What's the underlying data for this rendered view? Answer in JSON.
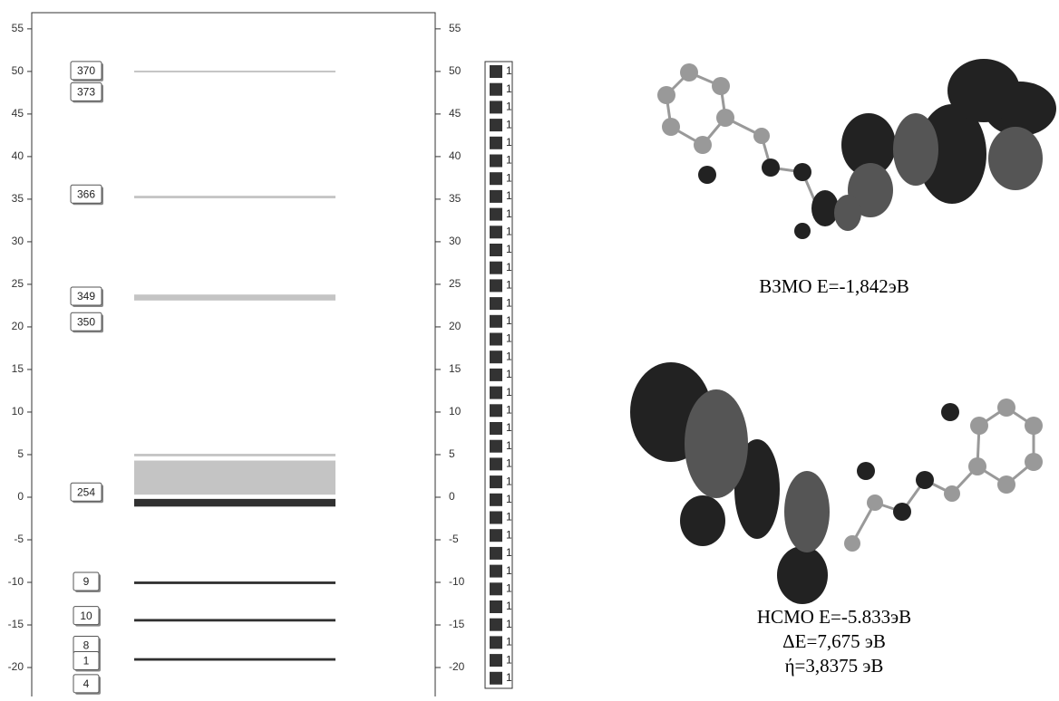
{
  "chart_data": {
    "type": "energy-levels",
    "ylim": [
      -23.4,
      56.9
    ],
    "yticks": [
      55,
      50,
      45,
      40,
      35,
      30,
      25,
      20,
      15,
      10,
      5,
      0,
      -5,
      -10,
      -15,
      -20
    ],
    "levels": [
      {
        "ymin": 49.9,
        "ymax": 50.1,
        "color": "#c4c4c4"
      },
      {
        "ymin": 35.1,
        "ymax": 35.4,
        "color": "#c4c4c4"
      },
      {
        "ymin": 23.1,
        "ymax": 23.8,
        "color": "#c4c4c4"
      },
      {
        "ymin": 4.8,
        "ymax": 5.1,
        "color": "#c4c4c4"
      },
      {
        "ymin": 0.3,
        "ymax": 4.3,
        "color": "#c4c4c4"
      },
      {
        "ymin": -1.1,
        "ymax": -0.2,
        "color": "#303030"
      },
      {
        "ymin": -10.2,
        "ymax": -9.9,
        "color": "#303030"
      },
      {
        "ymin": -14.6,
        "ymax": -14.3,
        "color": "#303030"
      },
      {
        "ymin": -19.2,
        "ymax": -18.9,
        "color": "#303030"
      }
    ],
    "level_labels": [
      {
        "label": "370",
        "value": 50
      },
      {
        "label": "373",
        "value": 47.5
      },
      {
        "label": "366",
        "value": 35.5
      },
      {
        "label": "349",
        "value": 23.5
      },
      {
        "label": "350",
        "value": 20.5
      },
      {
        "label": "254",
        "value": 0.5
      },
      {
        "label": "9",
        "value": -10
      },
      {
        "label": "10",
        "value": -14
      },
      {
        "label": "8",
        "value": -17.5
      },
      {
        "label": "1",
        "value": -19.3
      },
      {
        "label": "4",
        "value": -22
      }
    ],
    "legend": [
      "1",
      "1",
      "1",
      "1",
      "1",
      "1",
      "1",
      "1",
      "1",
      "1",
      "1",
      "1",
      "1",
      "1",
      "1",
      "1",
      "1",
      "1",
      "1",
      "1",
      "1",
      "1",
      "1",
      "1",
      "1",
      "1",
      "1",
      "1",
      "1",
      "1",
      "1",
      "1",
      "1",
      "1",
      "1"
    ],
    "captions": {
      "homo": "ВЗМО Е=-1,842эВ",
      "lumo": "НСМО Е=-5.833эВ",
      "gap": "ΔЕ=7,675 эВ",
      "hardness": "ή=3,8375 эВ"
    }
  }
}
